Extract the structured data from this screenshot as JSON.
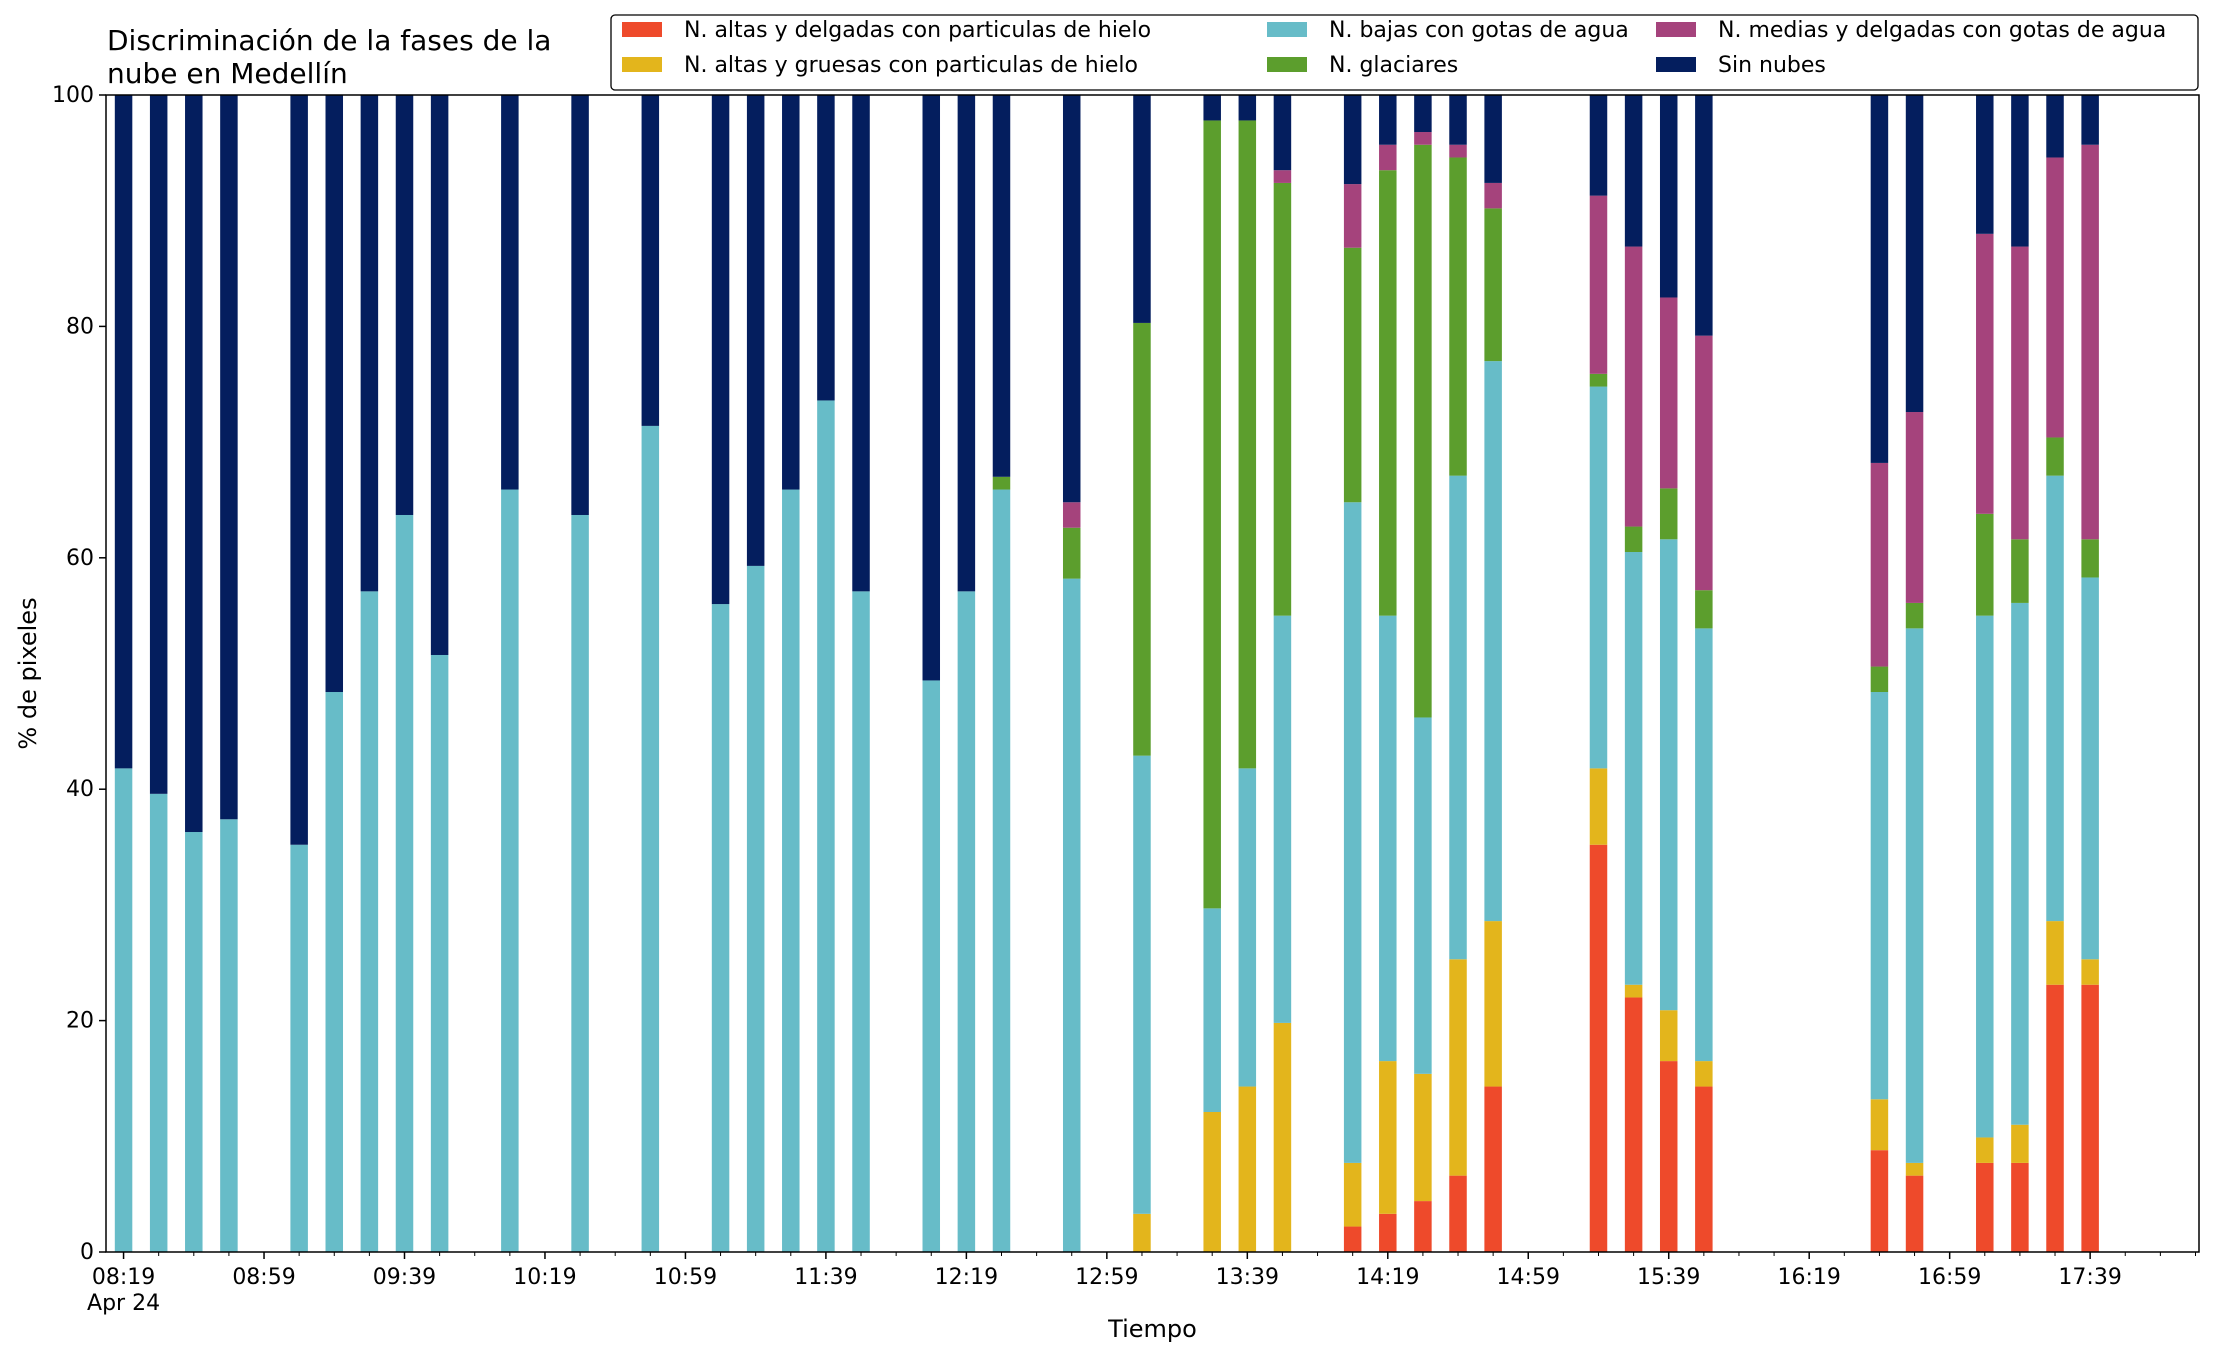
{
  "chart_data": {
    "type": "bar",
    "stacked": true,
    "title": [
      "Discriminación de la fases de la",
      "nube en Medellín"
    ],
    "xlabel": "Tiempo",
    "ylabel": "% de pixeles",
    "ylim": [
      0,
      100
    ],
    "yticks": [
      0,
      20,
      40,
      60,
      80,
      100
    ],
    "grid": false,
    "legend_location": "top-right",
    "legend_columns": 3,
    "xlim_minutes": [
      -5,
      591
    ],
    "x_tick_labels": [
      {
        "t": 0,
        "label": "08:19",
        "sub": "Apr 24"
      },
      {
        "t": 40,
        "label": "08:59"
      },
      {
        "t": 80,
        "label": "09:39"
      },
      {
        "t": 120,
        "label": "10:19"
      },
      {
        "t": 160,
        "label": "10:59"
      },
      {
        "t": 200,
        "label": "11:39"
      },
      {
        "t": 240,
        "label": "12:19"
      },
      {
        "t": 280,
        "label": "12:59"
      },
      {
        "t": 320,
        "label": "13:39"
      },
      {
        "t": 360,
        "label": "14:19"
      },
      {
        "t": 400,
        "label": "14:59"
      },
      {
        "t": 440,
        "label": "15:39"
      },
      {
        "t": 480,
        "label": "16:19"
      },
      {
        "t": 520,
        "label": "16:59"
      },
      {
        "t": 560,
        "label": "17:39"
      }
    ],
    "x_minor_ticks": [
      10,
      20,
      30,
      50,
      60,
      70,
      90,
      100,
      110,
      130,
      140,
      150,
      170,
      180,
      190,
      210,
      220,
      230,
      250,
      260,
      270,
      290,
      300,
      310,
      330,
      340,
      350,
      370,
      380,
      390,
      410,
      420,
      430,
      450,
      460,
      470,
      490,
      500,
      510,
      530,
      540,
      550,
      570,
      580,
      590
    ],
    "series": [
      {
        "name": "N. altas y delgadas con particulas de hielo",
        "color": "#ee4a2b"
      },
      {
        "name": "N. altas y gruesas con particulas de hielo",
        "color": "#e3b51c"
      },
      {
        "name": "N. bajas con gotas de agua",
        "color": "#67bcc8"
      },
      {
        "name": "N. glaciares",
        "color": "#5c9e2d"
      },
      {
        "name": "N. medias y delgadas con gotas de agua",
        "color": "#a5437c"
      },
      {
        "name": "Sin nubes",
        "color": "#041e5e"
      }
    ],
    "bars": [
      {
        "t": 0,
        "values": [
          0,
          0,
          41.8,
          0,
          0,
          58.2
        ]
      },
      {
        "t": 10,
        "values": [
          0,
          0,
          39.6,
          0,
          0,
          60.4
        ]
      },
      {
        "t": 20,
        "values": [
          0,
          0,
          36.3,
          0,
          0,
          63.7
        ]
      },
      {
        "t": 30,
        "values": [
          0,
          0,
          37.4,
          0,
          0,
          62.6
        ]
      },
      {
        "t": 50,
        "values": [
          0,
          0,
          35.2,
          0,
          0,
          64.8
        ]
      },
      {
        "t": 60,
        "values": [
          0,
          0,
          48.4,
          0,
          0,
          51.6
        ]
      },
      {
        "t": 70,
        "values": [
          0,
          0,
          57.1,
          0,
          0,
          42.9
        ]
      },
      {
        "t": 80,
        "values": [
          0,
          0,
          63.7,
          0,
          0,
          36.3
        ]
      },
      {
        "t": 90,
        "values": [
          0,
          0,
          51.6,
          0,
          0,
          48.4
        ]
      },
      {
        "t": 110,
        "values": [
          0,
          0,
          65.9,
          0,
          0,
          34.1
        ]
      },
      {
        "t": 130,
        "values": [
          0,
          0,
          63.7,
          0,
          0,
          36.3
        ]
      },
      {
        "t": 150,
        "values": [
          0,
          0,
          71.4,
          0,
          0,
          28.6
        ]
      },
      {
        "t": 170,
        "values": [
          0,
          0,
          56.0,
          0,
          0,
          44.0
        ]
      },
      {
        "t": 180,
        "values": [
          0,
          0,
          59.3,
          0,
          0,
          40.7
        ]
      },
      {
        "t": 190,
        "values": [
          0,
          0,
          65.9,
          0,
          0,
          34.1
        ]
      },
      {
        "t": 200,
        "values": [
          0,
          0,
          73.6,
          0,
          0,
          26.4
        ]
      },
      {
        "t": 210,
        "values": [
          0,
          0,
          57.1,
          0,
          0,
          42.9
        ]
      },
      {
        "t": 230,
        "values": [
          0,
          0,
          49.4,
          0,
          0,
          50.6
        ]
      },
      {
        "t": 240,
        "values": [
          0,
          0,
          57.1,
          0,
          0,
          42.9
        ]
      },
      {
        "t": 250,
        "values": [
          0,
          0,
          65.9,
          1.1,
          0,
          33.0
        ]
      },
      {
        "t": 270,
        "values": [
          0,
          0,
          58.2,
          4.4,
          2.2,
          35.2
        ]
      },
      {
        "t": 290,
        "values": [
          0,
          3.3,
          39.6,
          37.4,
          0,
          19.7
        ]
      },
      {
        "t": 310,
        "values": [
          0,
          12.1,
          17.6,
          68.1,
          0,
          2.2
        ]
      },
      {
        "t": 320,
        "values": [
          0,
          14.3,
          27.5,
          56.0,
          0,
          2.2
        ]
      },
      {
        "t": 330,
        "values": [
          0,
          19.8,
          35.2,
          37.4,
          1.1,
          6.5
        ]
      },
      {
        "t": 350,
        "values": [
          2.2,
          5.5,
          57.1,
          22.0,
          5.5,
          7.7
        ]
      },
      {
        "t": 360,
        "values": [
          3.3,
          13.2,
          38.5,
          38.5,
          2.2,
          4.3
        ]
      },
      {
        "t": 370,
        "values": [
          4.4,
          11.0,
          30.8,
          49.5,
          1.1,
          3.2
        ]
      },
      {
        "t": 380,
        "values": [
          6.6,
          18.7,
          41.8,
          27.5,
          1.1,
          4.3
        ]
      },
      {
        "t": 390,
        "values": [
          14.3,
          14.3,
          48.4,
          13.2,
          2.2,
          7.6
        ]
      },
      {
        "t": 420,
        "values": [
          35.2,
          6.6,
          33.0,
          1.1,
          15.4,
          8.7
        ]
      },
      {
        "t": 430,
        "values": [
          22.0,
          1.1,
          37.4,
          2.2,
          24.2,
          13.1
        ]
      },
      {
        "t": 440,
        "values": [
          16.5,
          4.4,
          40.7,
          4.4,
          16.5,
          17.5
        ]
      },
      {
        "t": 450,
        "values": [
          14.3,
          2.2,
          37.4,
          3.3,
          22.0,
          20.8
        ]
      },
      {
        "t": 500,
        "values": [
          8.8,
          4.4,
          35.2,
          2.2,
          17.6,
          31.8
        ]
      },
      {
        "t": 510,
        "values": [
          6.6,
          1.1,
          46.2,
          2.2,
          16.5,
          27.4
        ]
      },
      {
        "t": 530,
        "values": [
          7.7,
          2.2,
          45.1,
          8.8,
          24.2,
          12.0
        ]
      },
      {
        "t": 540,
        "values": [
          7.7,
          3.3,
          45.1,
          5.5,
          25.3,
          13.1
        ]
      },
      {
        "t": 550,
        "values": [
          23.1,
          5.5,
          38.5,
          3.3,
          24.2,
          5.4
        ]
      },
      {
        "t": 560,
        "values": [
          23.1,
          2.2,
          33.0,
          3.3,
          34.1,
          4.3
        ]
      }
    ]
  }
}
